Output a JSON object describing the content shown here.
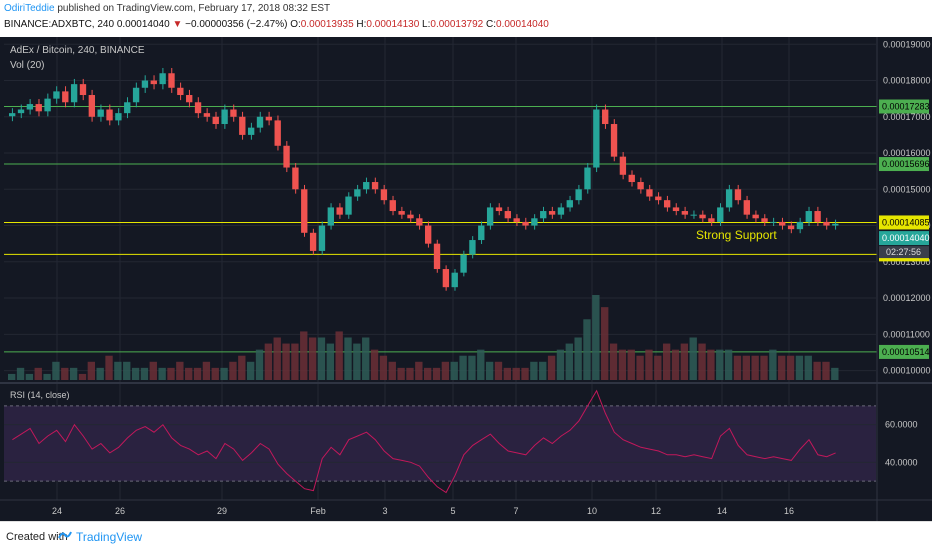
{
  "header": {
    "author": "OdiriTeddie",
    "published_text": "published on TradingView.com, February 17, 2018 08:32 EST",
    "symbol_line": "BINANCE:ADXBTC, 240",
    "last_price": "0.00014040",
    "change_arrow": "▼",
    "change_text": "−0.00000356 (−2.47%)",
    "o_label": "O:",
    "o_value": "0.00013935",
    "h_label": "H:",
    "h_value": "0.00014130",
    "l_label": "L:",
    "l_value": "0.00013792",
    "c_label": "C:",
    "c_value": "0.00014040"
  },
  "chart_data": {
    "type": "candlestick",
    "title": "AdEx / Bitcoin, 240, BINANCE",
    "volume_label": "Vol (20)",
    "annotation": "Strong Support",
    "countdown": "02:27:56",
    "yaxis_ticks": [
      "0.00010000",
      "0.00011000",
      "0.00012000",
      "0.00013000",
      "0.00014000",
      "0.00015000",
      "0.00016000",
      "0.00017000",
      "0.00018000",
      "0.00019000"
    ],
    "ylim": [
      9.74e-05,
      0.000192
    ],
    "xaxis_ticks": [
      "24",
      "26",
      "29",
      "Feb",
      "3",
      "5",
      "7",
      "10",
      "12",
      "14",
      "16"
    ],
    "horizontal_lines": [
      {
        "value": 0.00017283,
        "label": "0.00017283",
        "color": "#4caf50"
      },
      {
        "value": 0.00015696,
        "label": "0.00015696",
        "color": "#4caf50"
      },
      {
        "value": 0.00014085,
        "label": "0.00014085",
        "color": "#e6e600"
      },
      {
        "value": 0.00013205,
        "label": "0.00013205",
        "color": "#e6e600"
      },
      {
        "value": 0.00010514,
        "label": "0.00010514",
        "color": "#4caf50"
      }
    ],
    "last_price_label": "0.00014040",
    "close_path": [
      0.000171,
      0.000172,
      0.0001735,
      0.0001715,
      0.000175,
      0.000177,
      0.000174,
      0.000179,
      0.000176,
      0.00017,
      0.000172,
      0.000169,
      0.000171,
      0.000174,
      0.000178,
      0.00018,
      0.000179,
      0.000182,
      0.000178,
      0.000176,
      0.000174,
      0.000171,
      0.00017,
      0.000168,
      0.000172,
      0.00017,
      0.000165,
      0.000167,
      0.00017,
      0.000169,
      0.000162,
      0.000156,
      0.00015,
      0.000138,
      0.000133,
      0.00014,
      0.000145,
      0.000143,
      0.000148,
      0.00015,
      0.000152,
      0.00015,
      0.000147,
      0.000144,
      0.000143,
      0.000142,
      0.00014,
      0.000135,
      0.000128,
      0.000123,
      0.000127,
      0.000132,
      0.000136,
      0.00014,
      0.000145,
      0.000144,
      0.000142,
      0.000141,
      0.00014,
      0.000142,
      0.000144,
      0.000143,
      0.000145,
      0.000147,
      0.00015,
      0.000156,
      0.000172,
      0.000168,
      0.000159,
      0.000154,
      0.000152,
      0.00015,
      0.000148,
      0.000147,
      0.000145,
      0.000144,
      0.000143,
      0.000143,
      0.000142,
      0.000141,
      0.000145,
      0.00015,
      0.000147,
      0.000143,
      0.000142,
      0.000141,
      0.000141,
      0.00014,
      0.000139,
      0.000141,
      0.000144,
      0.000141,
      0.00014,
      0.0001405
    ],
    "volume_path": [
      1,
      2,
      1,
      2,
      1,
      3,
      2,
      2,
      1,
      3,
      2,
      4,
      3,
      3,
      2,
      2,
      3,
      2,
      2,
      3,
      2,
      2,
      3,
      2,
      2,
      3,
      4,
      3,
      5,
      6,
      7,
      6,
      6,
      8,
      7,
      7,
      6,
      8,
      7,
      6,
      7,
      5,
      4,
      3,
      2,
      2,
      3,
      2,
      2,
      3,
      3,
      4,
      4,
      5,
      3,
      3,
      2,
      2,
      2,
      3,
      3,
      4,
      5,
      6,
      7,
      10,
      14,
      12,
      6,
      5,
      5,
      4,
      5,
      4,
      6,
      5,
      6,
      7,
      6,
      5,
      5,
      5,
      4,
      4,
      4,
      4,
      5,
      4,
      4,
      4,
      4,
      3,
      3,
      2
    ],
    "rsi": {
      "label": "RSI (14, close)",
      "ticks": [
        "40.0000",
        "60.0000"
      ],
      "upper": 70,
      "lower": 30,
      "values": [
        52,
        55,
        58,
        50,
        54,
        57,
        51,
        60,
        54,
        47,
        50,
        45,
        48,
        53,
        57,
        59,
        56,
        60,
        53,
        49,
        47,
        44,
        46,
        42,
        50,
        47,
        41,
        45,
        50,
        47,
        39,
        34,
        30,
        26,
        25,
        42,
        48,
        44,
        52,
        54,
        56,
        52,
        46,
        42,
        41,
        40,
        38,
        32,
        27,
        24,
        33,
        44,
        49,
        52,
        55,
        50,
        46,
        45,
        44,
        49,
        53,
        50,
        54,
        57,
        62,
        70,
        78,
        66,
        56,
        52,
        50,
        48,
        47,
        46,
        44,
        44,
        43,
        44,
        43,
        42,
        54,
        58,
        49,
        44,
        43,
        42,
        43,
        42,
        41,
        47,
        52,
        44,
        43,
        45
      ]
    }
  },
  "footer": {
    "created_with": "Created with",
    "brand": "TradingView"
  },
  "colors": {
    "background": "#141823",
    "up": "#26a69a",
    "down": "#ef5350",
    "grid": "#232733",
    "axis_text": "#c8c8c8",
    "rsi_fill": "#2a2240",
    "rsi_line": "#c2185b",
    "annotation": "#e6e600"
  }
}
